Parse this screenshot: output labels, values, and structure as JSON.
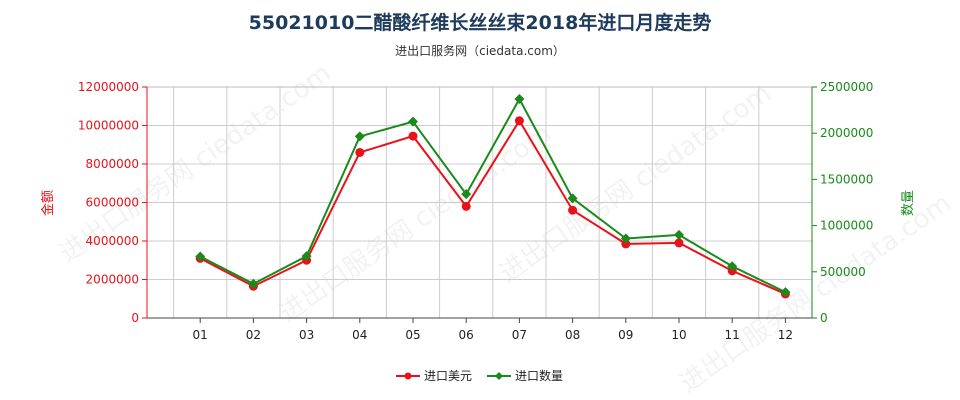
{
  "title": "55021010二醋酸纤维长丝丝束2018年进口月度走势",
  "subtitle": "进出口服务网（ciedata.com）",
  "watermark": "进出口服务网 ciedata.com",
  "colors": {
    "left_axis": "#e8131a",
    "right_axis": "#1a8a1a",
    "grid": "#cccccc",
    "title": "#1f3b5c"
  },
  "chart_data": {
    "type": "line",
    "categories": [
      "01",
      "02",
      "03",
      "04",
      "05",
      "06",
      "07",
      "08",
      "09",
      "10",
      "11",
      "12"
    ],
    "y_left": {
      "label": "金额",
      "min": 0,
      "max": 12000000,
      "ticks": [
        0,
        2000000,
        4000000,
        6000000,
        8000000,
        10000000,
        12000000
      ]
    },
    "y_right": {
      "label": "数量",
      "min": 0,
      "max": 2500000,
      "ticks": [
        0,
        500000,
        1000000,
        1500000,
        2000000,
        2500000
      ]
    },
    "series": [
      {
        "name": "进口美元",
        "axis": "left",
        "color": "#e8131a",
        "marker": "circle",
        "values": [
          3100000,
          1650000,
          3000000,
          8600000,
          9450000,
          5800000,
          10250000,
          5600000,
          3850000,
          3900000,
          2450000,
          1250000
        ]
      },
      {
        "name": "进口数量",
        "axis": "right",
        "color": "#1a8a1a",
        "marker": "diamond",
        "values": [
          665000,
          370000,
          670000,
          1965000,
          2125000,
          1340000,
          2370000,
          1295000,
          860000,
          900000,
          560000,
          280000
        ]
      }
    ],
    "grid": true,
    "legend_position": "bottom"
  }
}
